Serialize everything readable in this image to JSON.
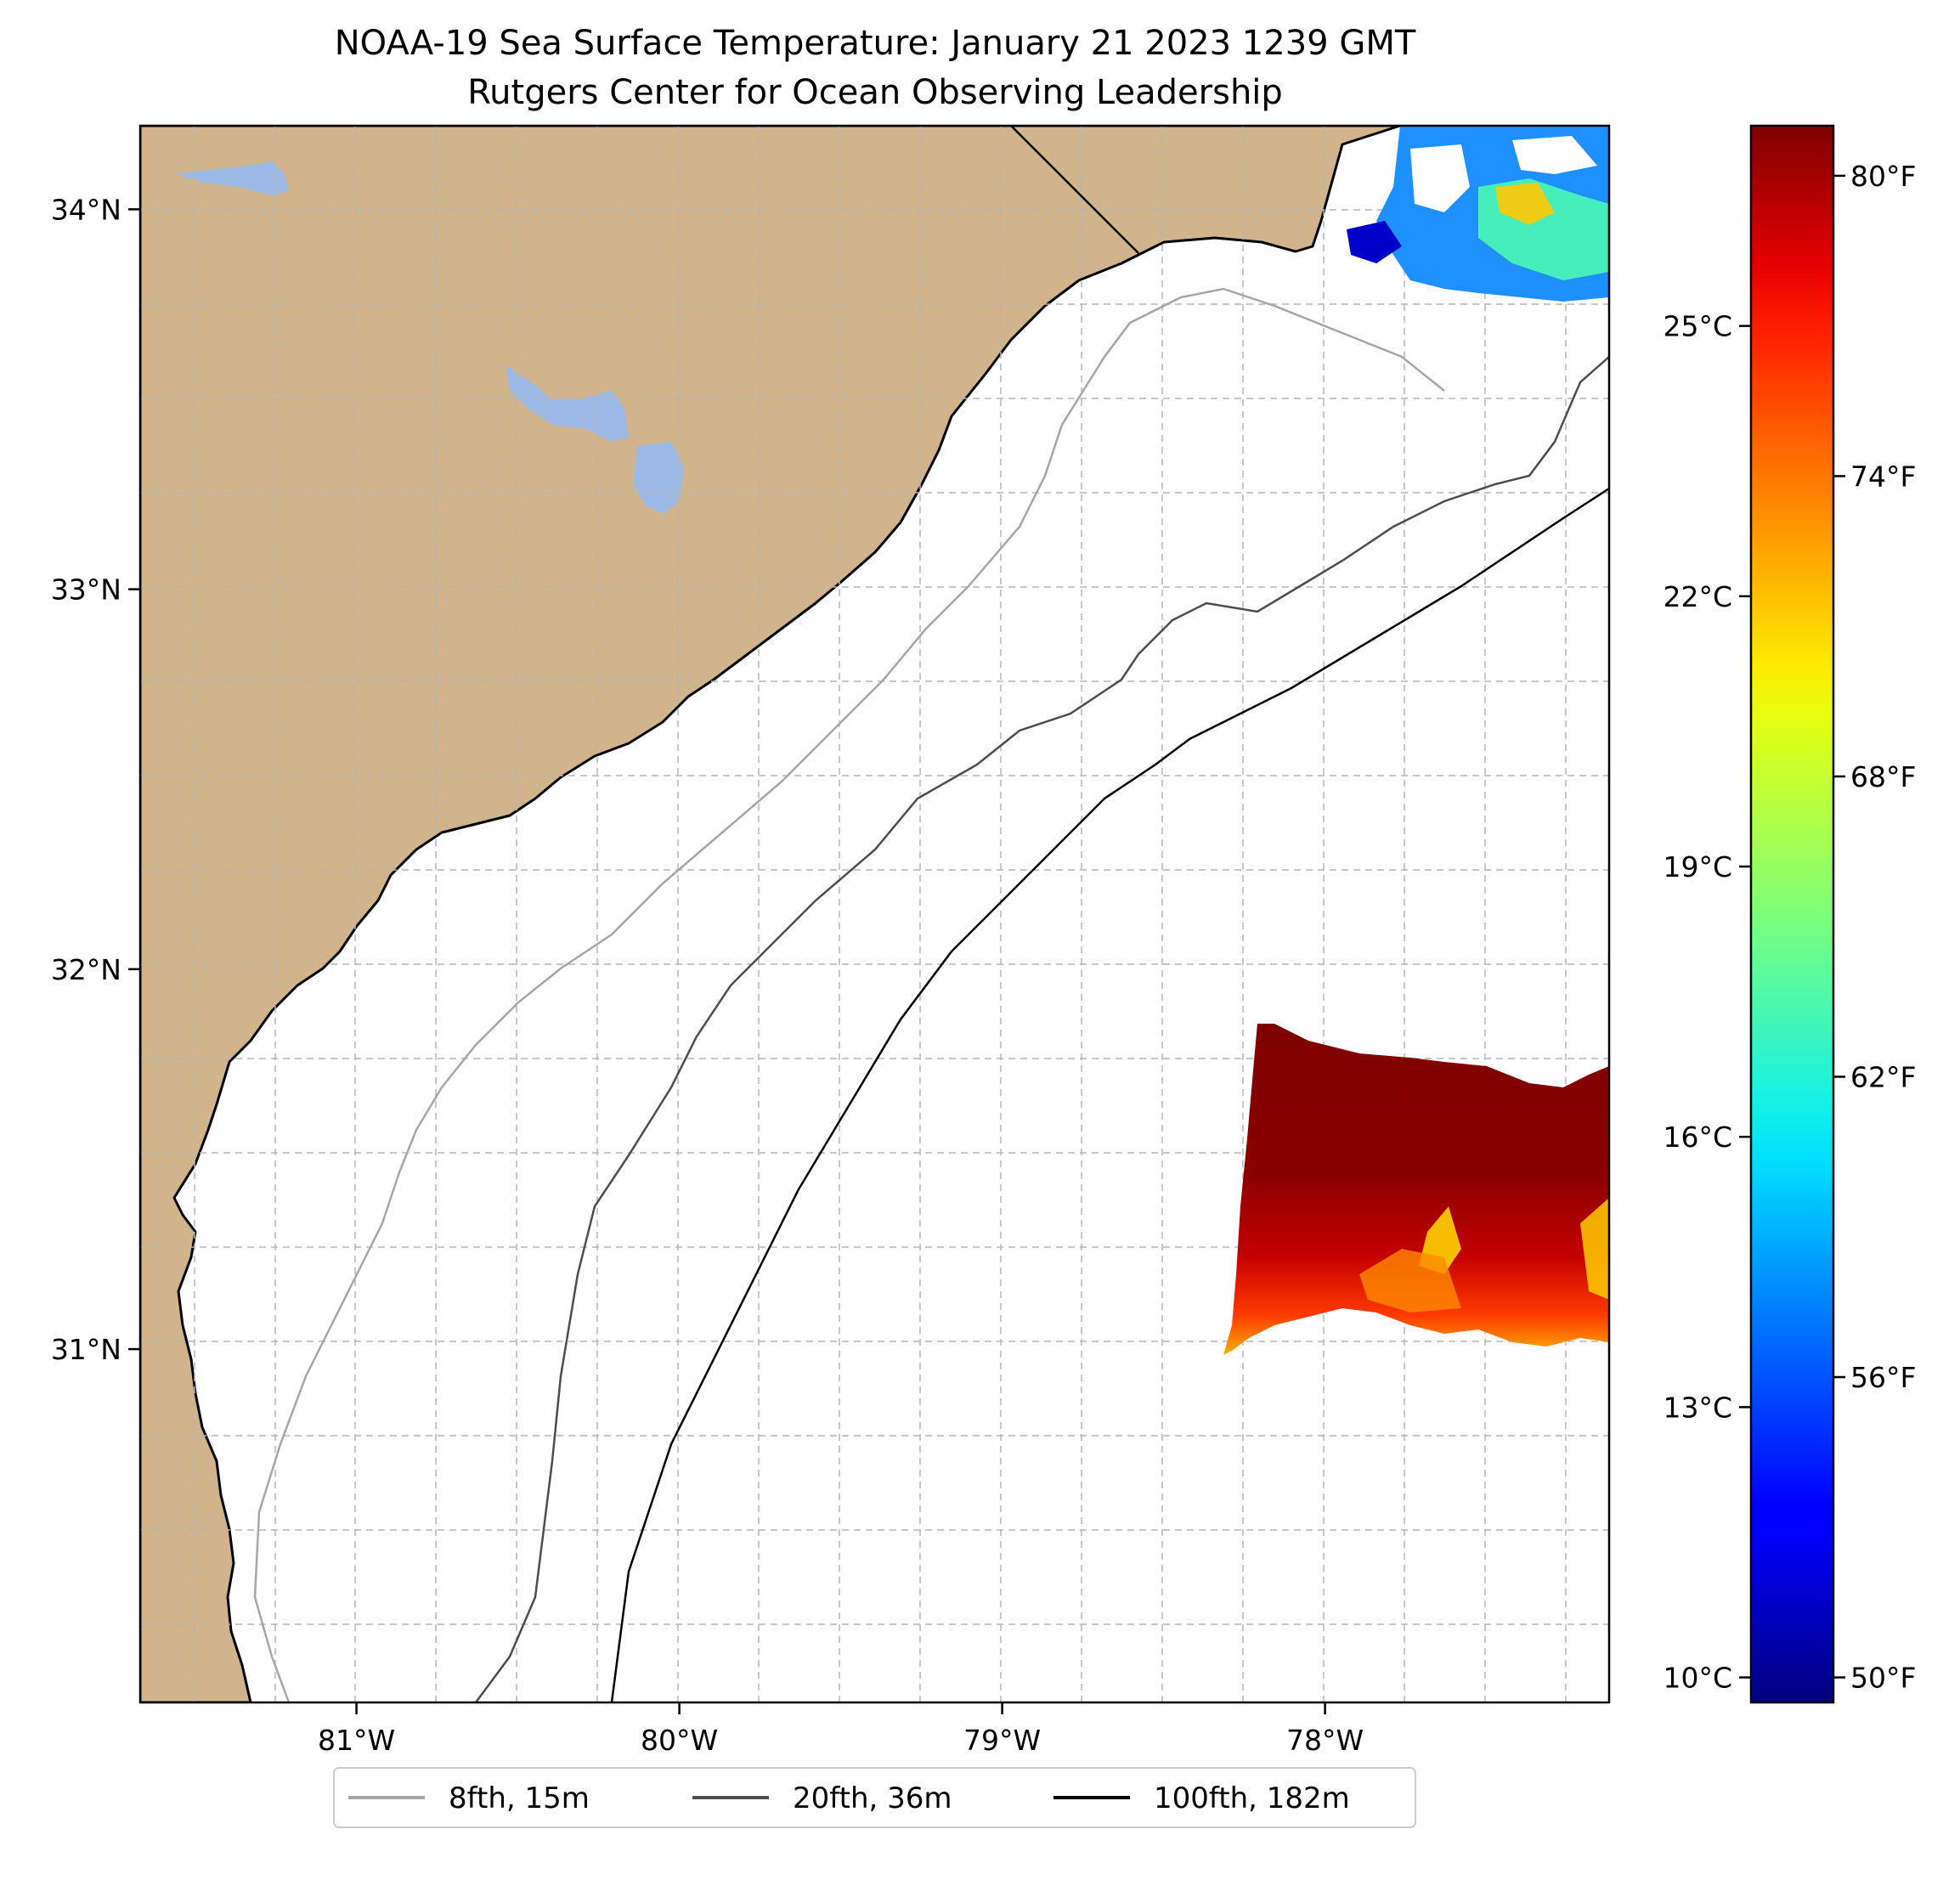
{
  "title": {
    "line1": "NOAA-19 Sea Surface Temperature: January 21 2023 1239 GMT",
    "line2": "Rutgers Center for Ocean Observing Leadership"
  },
  "map": {
    "lon_range": [
      -81.67,
      -77.12
    ],
    "lat_range": [
      30.07,
      34.22
    ],
    "colors": {
      "land": "#d1b48c",
      "lakes": "#9dbae6",
      "coastline": "#000000",
      "grid": "#b5b5b5",
      "isobath_8fth": "#a6a6a6",
      "isobath_20fth": "#4d4d4d",
      "isobath_100fth": "#000000"
    },
    "lon_ticks": [
      {
        "value": -81,
        "label": "81°W"
      },
      {
        "value": -80,
        "label": "80°W"
      },
      {
        "value": -79,
        "label": "79°W"
      },
      {
        "value": -78,
        "label": "78°W"
      }
    ],
    "lat_ticks": [
      {
        "value": 34,
        "label": "34°N"
      },
      {
        "value": 33,
        "label": "33°N"
      },
      {
        "value": 32,
        "label": "32°N"
      },
      {
        "value": 31,
        "label": "31°N"
      }
    ],
    "grid": true
  },
  "colorbar": {
    "colormap": "jet",
    "range_f": [
      49.5,
      81.0
    ],
    "celsius_ticks": [
      {
        "value": 10,
        "label": "10°C"
      },
      {
        "value": 13,
        "label": "13°C"
      },
      {
        "value": 16,
        "label": "16°C"
      },
      {
        "value": 19,
        "label": "19°C"
      },
      {
        "value": 22,
        "label": "22°C"
      },
      {
        "value": 25,
        "label": "25°C"
      }
    ],
    "fahrenheit_ticks": [
      {
        "value": 50,
        "label": "50°F"
      },
      {
        "value": 56,
        "label": "56°F"
      },
      {
        "value": 62,
        "label": "62°F"
      },
      {
        "value": 68,
        "label": "68°F"
      },
      {
        "value": 74,
        "label": "74°F"
      },
      {
        "value": 80,
        "label": "80°F"
      }
    ]
  },
  "legend": {
    "placement": "bottom-center",
    "items": [
      {
        "label": "8fth, 15m",
        "color": "#a6a6a6"
      },
      {
        "label": "20fth, 36m",
        "color": "#4d4d4d"
      },
      {
        "label": "100fth, 182m",
        "color": "#000000"
      }
    ]
  }
}
